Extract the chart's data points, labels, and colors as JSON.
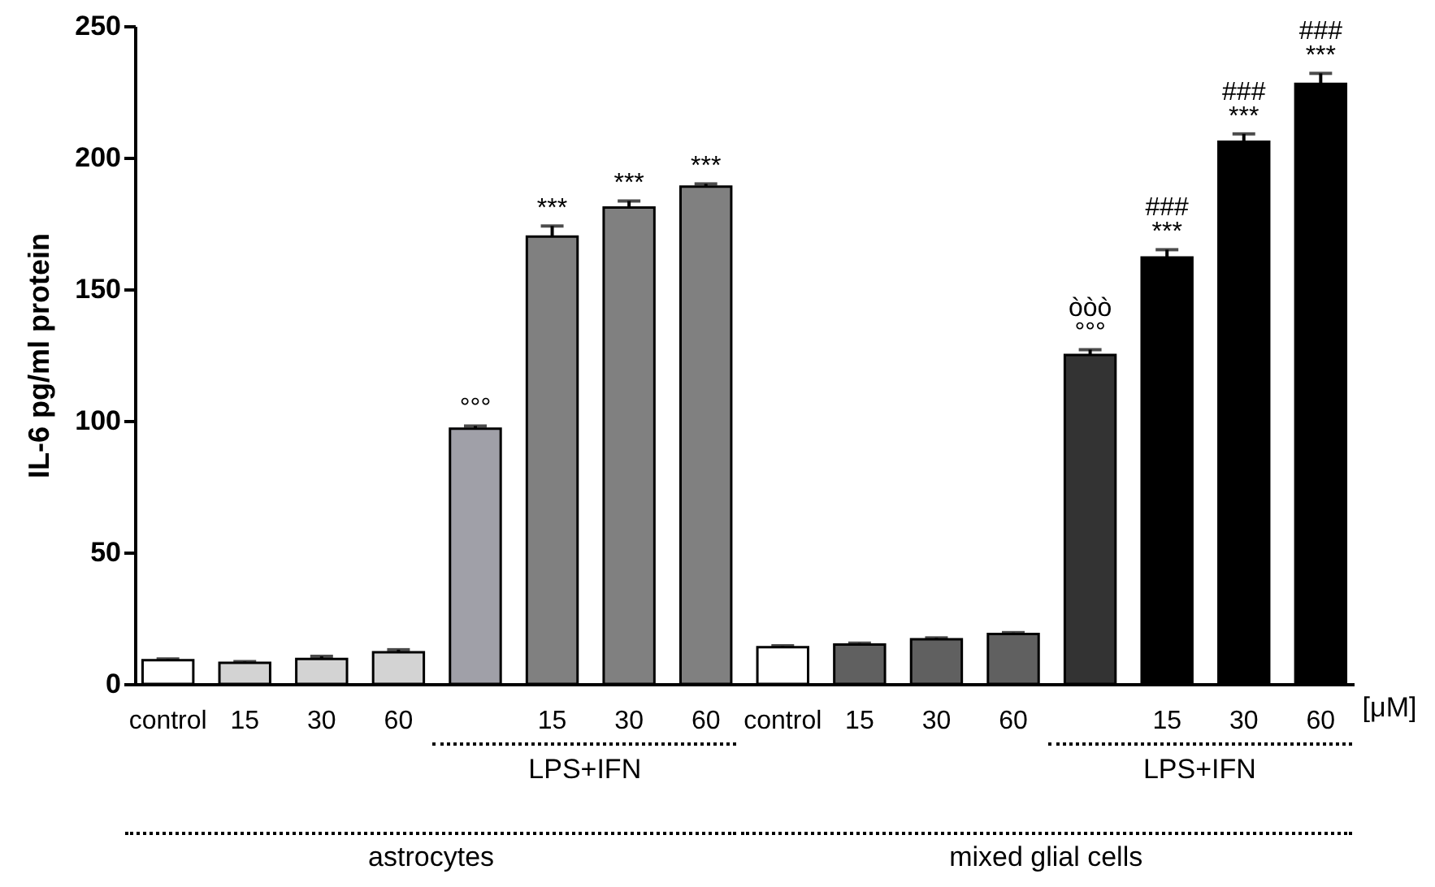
{
  "chart_data": {
    "type": "bar",
    "ylabel": "IL-6 pg/ml protein",
    "categories": [
      "control",
      "15",
      "30",
      "60",
      null,
      "15",
      "30",
      "60",
      "control",
      "15",
      "30",
      "60",
      null,
      "15",
      "30",
      "60"
    ],
    "values": [
      9,
      8,
      9.5,
      12,
      97,
      170,
      181,
      189,
      14,
      15,
      17,
      19,
      125,
      162,
      206,
      228
    ],
    "errors": [
      0.5,
      0.5,
      1,
      1,
      1,
      4,
      2.5,
      1,
      0.5,
      0.5,
      0.5,
      0.5,
      2,
      3,
      3,
      4
    ],
    "colors": [
      "#ffffff",
      "#d3d3d3",
      "#d3d3d3",
      "#d3d3d3",
      "#a0a0a8",
      "#808080",
      "#808080",
      "#808080",
      "#ffffff",
      "#606060",
      "#606060",
      "#606060",
      "#333333",
      "#000000",
      "#000000",
      "#000000"
    ],
    "value_labels": [
      null,
      null,
      null,
      null,
      "°°°",
      "***",
      "***",
      "***",
      null,
      null,
      null,
      null,
      "òòò\n°°°",
      "###\n***",
      "###\n***",
      "###\n***"
    ],
    "ylim": [
      0,
      250
    ],
    "yticks": [
      0,
      50,
      100,
      150,
      200,
      250
    ],
    "grid": false,
    "annotations": [
      "LPS+IFN",
      "LPS+IFN",
      "astrocytes",
      "mixed glial cells",
      "[μM]"
    ]
  }
}
